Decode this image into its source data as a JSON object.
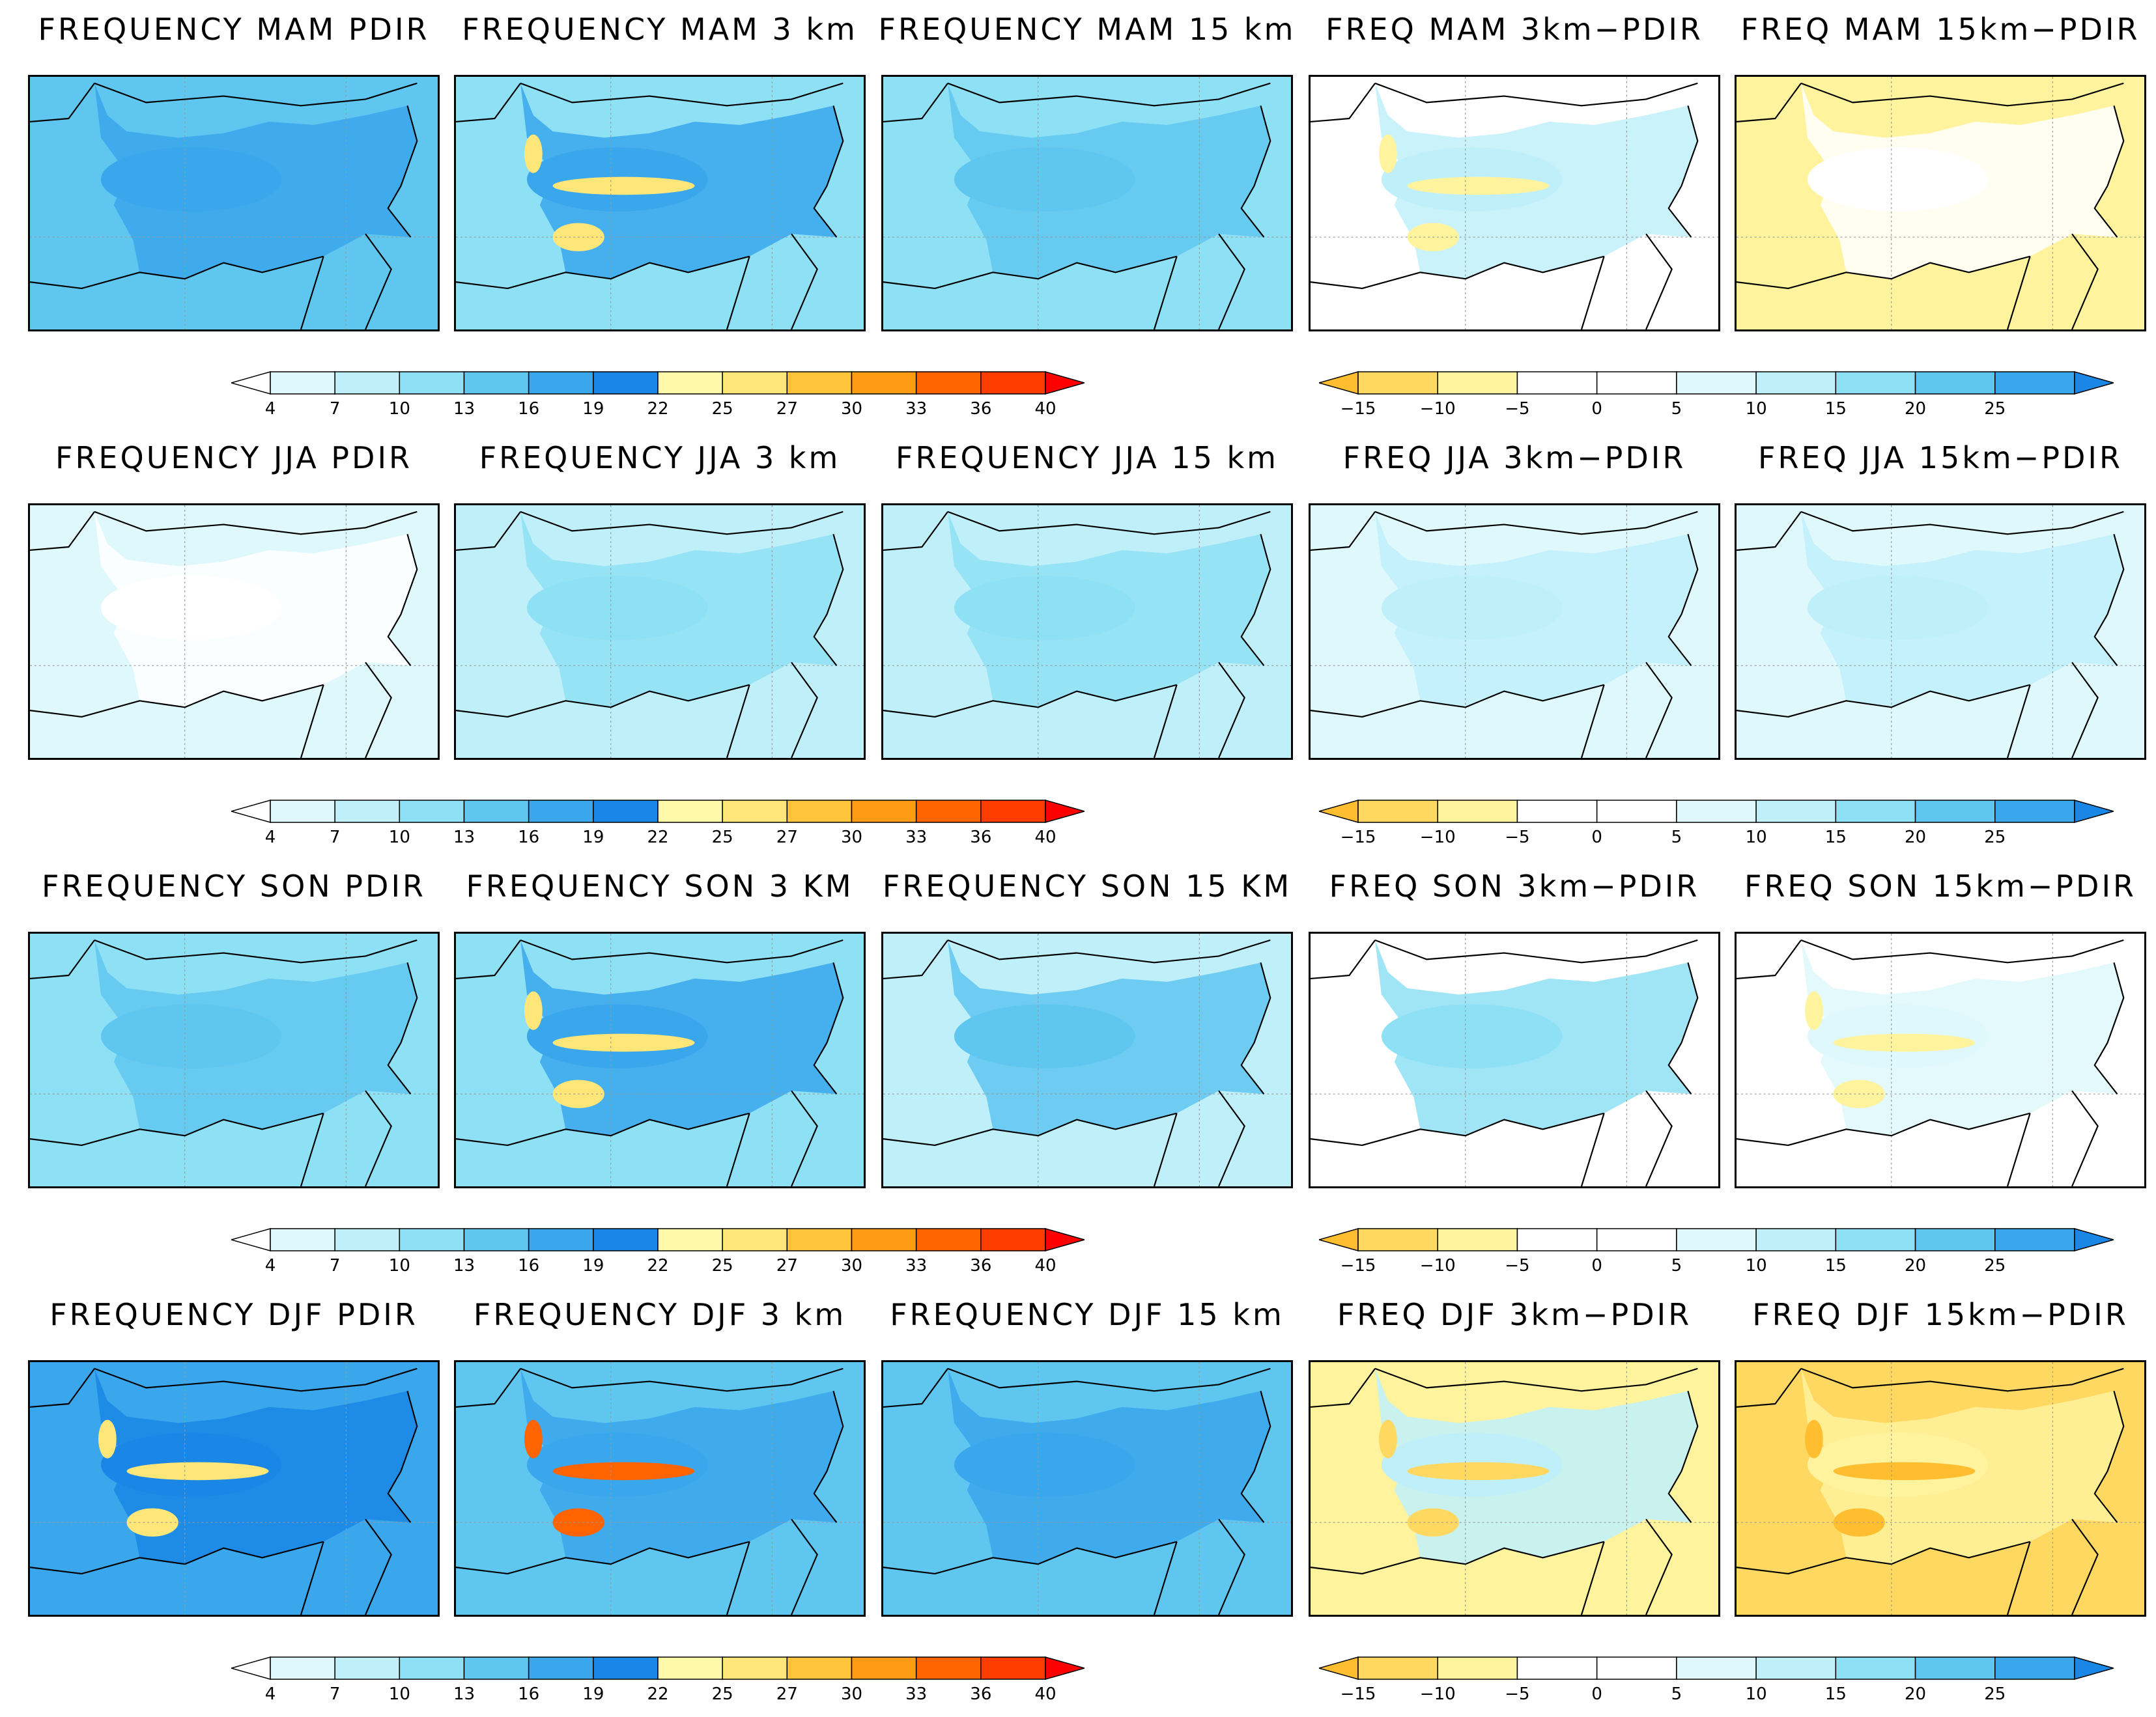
{
  "chart_data": {
    "type": "heatmap",
    "description_grid": "5 columns x 4 rows of precipitation frequency maps over Bulgaria",
    "rows": [
      {
        "season": "MAM",
        "titles": [
          "FREQUENCY MAM PDIR",
          "FREQUENCY MAM 3 km",
          "FREQUENCY MAM 15 km",
          "FREQ MAM 3km−PDIR",
          "FREQ MAM 15km−PDIR"
        ]
      },
      {
        "season": "JJA",
        "titles": [
          "FREQUENCY JJA PDIR",
          "FREQUENCY JJA 3 km",
          "FREQUENCY JJA 15 km",
          "FREQ JJA 3km−PDIR",
          "FREQ JJA 15km−PDIR"
        ]
      },
      {
        "season": "SON",
        "titles": [
          "FREQUENCY SON PDIR",
          "FREQUENCY SON 3 KM",
          "FREQUENCY SON 15 KM",
          "FREQ SON 3km−PDIR",
          "FREQ SON 15km−PDIR"
        ]
      },
      {
        "season": "DJF",
        "titles": [
          "FREQUENCY DJF PDIR",
          "FREQUENCY DJF 3 km",
          "FREQUENCY DJF 15 km",
          "FREQ DJF 3km−PDIR",
          "FREQ DJF 15km−PDIR"
        ]
      }
    ],
    "abs_colorbar": {
      "labels": [
        "4",
        "7",
        "10",
        "13",
        "16",
        "19",
        "22",
        "25",
        "27",
        "30",
        "33",
        "36",
        "40"
      ],
      "colors": [
        "#ffffff",
        "#dff8fc",
        "#bff0fa",
        "#8ee0f5",
        "#5fc6f0",
        "#3aa6ec",
        "#1a86e6",
        "#fffaaa",
        "#ffe678",
        "#ffc43c",
        "#ff9c14",
        "#ff6400",
        "#ff3c00",
        "#ff0000"
      ]
    },
    "diff_colorbar": {
      "labels": [
        "−15",
        "−10",
        "−5",
        "0",
        "5",
        "10",
        "15",
        "20",
        "25"
      ],
      "colors": [
        "#ffbe30",
        "#ffd862",
        "#fff39e",
        "#ffffff",
        "#ffffff",
        "#dff8fc",
        "#bff0fa",
        "#8ee0f5",
        "#5fc6f0",
        "#3aa6ec",
        "#1a86e6"
      ]
    },
    "panel_fill_levels": [
      [
        {
          "base": "#5fc6f0",
          "patch": "#3aa6ec",
          "hot": ""
        },
        {
          "base": "#8ee0f5",
          "patch": "#3aa6ec",
          "hot": "#ffe678"
        },
        {
          "base": "#8ee0f5",
          "patch": "#5fc6f0",
          "hot": ""
        },
        {
          "base": "#ffffff",
          "patch": "#bff0fa",
          "hot": "#fff39e"
        },
        {
          "base": "#fff39e",
          "patch": "#ffffff",
          "hot": ""
        }
      ],
      [
        {
          "base": "#dff8fc",
          "patch": "#ffffff",
          "hot": ""
        },
        {
          "base": "#bff0fa",
          "patch": "#8ee0f5",
          "hot": ""
        },
        {
          "base": "#bff0fa",
          "patch": "#8ee0f5",
          "hot": ""
        },
        {
          "base": "#dff8fc",
          "patch": "#bff0fa",
          "hot": ""
        },
        {
          "base": "#dff8fc",
          "patch": "#bff0fa",
          "hot": ""
        }
      ],
      [
        {
          "base": "#8ee0f5",
          "patch": "#5fc6f0",
          "hot": ""
        },
        {
          "base": "#8ee0f5",
          "patch": "#3aa6ec",
          "hot": "#ffe678"
        },
        {
          "base": "#bff0fa",
          "patch": "#5fc6f0",
          "hot": ""
        },
        {
          "base": "#ffffff",
          "patch": "#8ee0f5",
          "hot": ""
        },
        {
          "base": "#ffffff",
          "patch": "#dff8fc",
          "hot": "#fff39e"
        }
      ],
      [
        {
          "base": "#3aa6ec",
          "patch": "#1a86e6",
          "hot": "#ffe678"
        },
        {
          "base": "#5fc6f0",
          "patch": "#3aa6ec",
          "hot": "#ff6400"
        },
        {
          "base": "#5fc6f0",
          "patch": "#3aa6ec",
          "hot": ""
        },
        {
          "base": "#fff39e",
          "patch": "#bff0fa",
          "hot": "#ffd862"
        },
        {
          "base": "#ffd862",
          "patch": "#fff39e",
          "hot": "#ffbe30"
        }
      ]
    ]
  }
}
